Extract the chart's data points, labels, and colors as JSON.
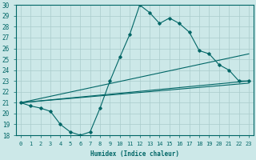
{
  "xlabel": "Humidex (Indice chaleur)",
  "background_color": "#cce8e8",
  "grid_color": "#aacccc",
  "line_color": "#006666",
  "xlim": [
    -0.5,
    23.5
  ],
  "ylim": [
    18,
    30
  ],
  "yticks": [
    18,
    19,
    20,
    21,
    22,
    23,
    24,
    25,
    26,
    27,
    28,
    29,
    30
  ],
  "xticks": [
    0,
    1,
    2,
    3,
    4,
    5,
    6,
    7,
    8,
    9,
    10,
    11,
    12,
    13,
    14,
    15,
    16,
    17,
    18,
    19,
    20,
    21,
    22,
    23
  ],
  "line1_x": [
    0,
    1,
    2,
    3,
    4,
    5,
    6,
    7,
    8,
    9,
    10,
    11,
    12,
    13,
    14,
    15,
    16,
    17,
    18,
    19,
    20,
    21,
    22,
    23
  ],
  "line1_y": [
    21.0,
    20.7,
    20.5,
    20.2,
    19.0,
    18.3,
    18.0,
    18.3,
    20.5,
    23.0,
    25.2,
    27.3,
    30.0,
    29.3,
    28.3,
    28.8,
    28.3,
    27.5,
    25.8,
    25.5,
    24.5,
    24.0,
    23.0,
    23.0
  ],
  "line2_x": [
    0,
    23
  ],
  "line2_y": [
    21.0,
    23.0
  ],
  "line3_x": [
    0,
    23
  ],
  "line3_y": [
    21.0,
    25.5
  ],
  "line4_x": [
    0,
    23
  ],
  "line4_y": [
    21.0,
    22.8
  ]
}
